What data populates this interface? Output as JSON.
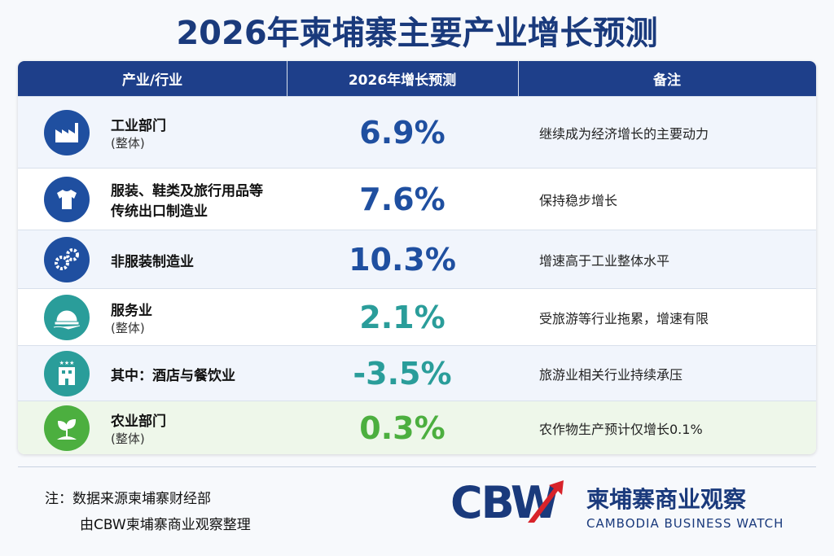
{
  "title": "2026年柬埔寨主要产业增长预测",
  "table": {
    "headers": [
      "产业/行业",
      "2026年增长预测",
      "备注"
    ],
    "rows": [
      {
        "name": [
          "工业部门"
        ],
        "sub": "(整体)",
        "growth": "6.9%",
        "note": "继续成为经济增长的主要动力"
      },
      {
        "name": [
          "服装、鞋类及旅行用品等",
          "传统出口制造业"
        ],
        "growth": "7.6%",
        "note": "保持稳步增长"
      },
      {
        "name": [
          "非服装制造业"
        ],
        "growth": "10.3%",
        "note": "增速高于工业整体水平"
      },
      {
        "name": [
          "服务业"
        ],
        "sub": "(整体)",
        "growth": "2.1%",
        "note": "受旅游等行业拖累，增速有限"
      },
      {
        "name": [
          "其中：酒店与餐饮业"
        ],
        "growth": "-3.5%",
        "note": "旅游业相关行业持续承压"
      },
      {
        "name": [
          "农业部门"
        ],
        "sub": "(整体)",
        "growth": "0.3%",
        "note": "农作物生产预计仅增长0.1%"
      }
    ]
  },
  "footer": {
    "notes": [
      "注：数据来源柬埔寨财经部",
      "由CBW柬埔寨商业观察整理"
    ],
    "logo": {
      "mark": "CBW",
      "name": "柬埔寨商业观察",
      "english": "CAMBODIA BUSINESS WATCH"
    }
  }
}
